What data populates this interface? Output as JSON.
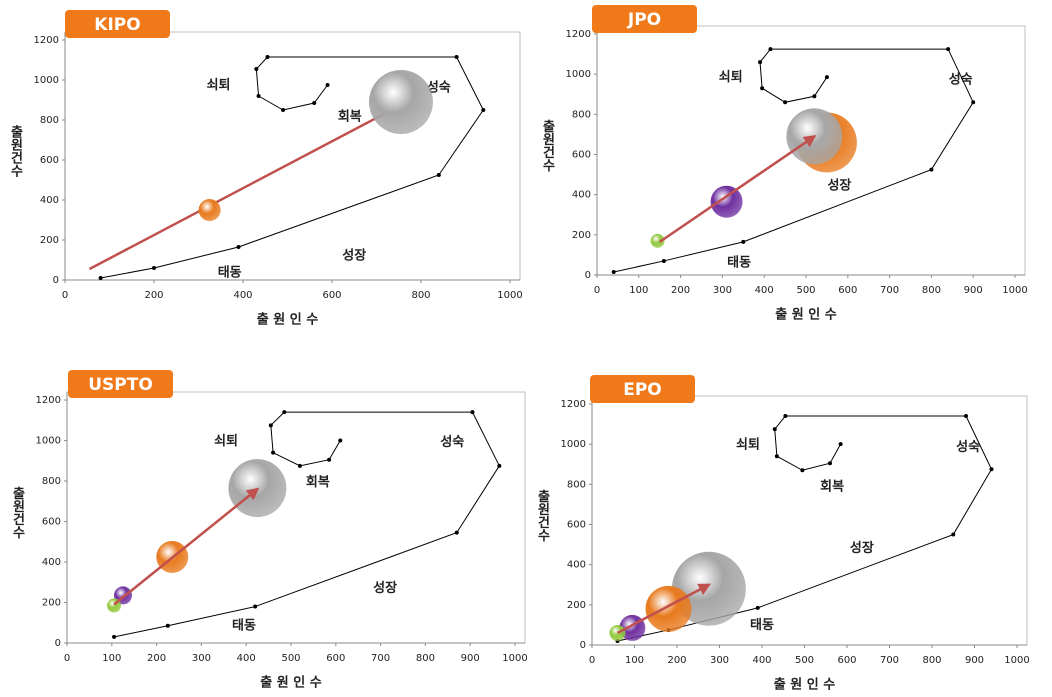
{
  "chart_data": [
    {
      "type": "bubble",
      "title": "KIPO",
      "xlabel": "출 원 인 수",
      "ylabel": "출원건수",
      "xlim": [
        0,
        1000
      ],
      "ylim": [
        0,
        1200
      ],
      "xticks": [
        0,
        200,
        400,
        600,
        800,
        1000
      ],
      "yticks": [
        0,
        200,
        400,
        600,
        800,
        1000,
        1200
      ],
      "annotations": [
        "쇠퇴",
        "성숙",
        "회복",
        "성장",
        "태동"
      ],
      "series": [
        {
          "type": "line",
          "color": "#000000",
          "x": [
            80,
            200,
            390,
            840,
            940,
            880,
            455,
            430,
            435,
            490,
            560,
            590
          ],
          "values": [
            10,
            60,
            165,
            525,
            850,
            1115,
            1115,
            1055,
            920,
            850,
            885,
            975
          ]
        },
        {
          "type": "arrow",
          "color": "#c0504d",
          "x": [
            55,
            755
          ],
          "values": [
            55,
            875
          ]
        },
        {
          "type": "bubble",
          "color": "#e87a1e",
          "x": [
            325
          ],
          "values": [
            350
          ],
          "sizes": [
            22
          ]
        },
        {
          "type": "bubble",
          "color": "#a6a6a6",
          "x": [
            755
          ],
          "values": [
            890
          ],
          "sizes": [
            64
          ]
        }
      ]
    },
    {
      "type": "bubble",
      "title": "JPO",
      "xlabel": "출 원 인 수",
      "ylabel": "출원건수",
      "xlim": [
        0,
        1000
      ],
      "ylim": [
        0,
        1200
      ],
      "xticks": [
        0,
        100,
        200,
        300,
        400,
        500,
        600,
        700,
        800,
        900,
        1000
      ],
      "yticks": [
        0,
        200,
        400,
        600,
        800,
        1000,
        1200
      ],
      "annotations": [
        "쇠퇴",
        "성숙",
        "성장",
        "태동"
      ],
      "series": [
        {
          "type": "line",
          "color": "#000000",
          "x": [
            40,
            160,
            350,
            800,
            900,
            840,
            415,
            390,
            395,
            450,
            520,
            550
          ],
          "values": [
            15,
            70,
            165,
            525,
            860,
            1125,
            1125,
            1060,
            930,
            860,
            890,
            985
          ]
        },
        {
          "type": "bubble",
          "color": "#e87a1e",
          "x": [
            550
          ],
          "values": [
            660
          ],
          "sizes": [
            60
          ]
        },
        {
          "type": "bubble",
          "color": "#a6a6a6",
          "x": [
            520
          ],
          "values": [
            690
          ],
          "sizes": [
            56
          ]
        },
        {
          "type": "bubble",
          "color": "#7030a0",
          "x": [
            310
          ],
          "values": [
            365
          ],
          "sizes": [
            32
          ]
        },
        {
          "type": "bubble",
          "color": "#92c83e",
          "x": [
            145
          ],
          "values": [
            170
          ],
          "sizes": [
            14
          ]
        },
        {
          "type": "arrow",
          "color": "#c0504d",
          "x": [
            150,
            520
          ],
          "values": [
            165,
            690
          ]
        }
      ]
    },
    {
      "type": "bubble",
      "title": "USPTO",
      "xlabel": "출 원 인 수",
      "ylabel": "출원건수",
      "xlim": [
        0,
        1000
      ],
      "ylim": [
        0,
        1200
      ],
      "xticks": [
        0,
        100,
        200,
        300,
        400,
        500,
        600,
        700,
        800,
        900,
        1000
      ],
      "yticks": [
        0,
        200,
        400,
        600,
        800,
        1000,
        1200
      ],
      "annotations": [
        "쇠퇴",
        "성숙",
        "회복",
        "성장",
        "태동"
      ],
      "series": [
        {
          "type": "line",
          "color": "#000000",
          "x": [
            105,
            225,
            420,
            870,
            965,
            905,
            485,
            455,
            460,
            520,
            585,
            610
          ],
          "values": [
            30,
            85,
            180,
            545,
            875,
            1140,
            1140,
            1075,
            940,
            875,
            905,
            1000
          ]
        },
        {
          "type": "bubble",
          "color": "#a6a6a6",
          "x": [
            425
          ],
          "values": [
            765
          ],
          "sizes": [
            58
          ]
        },
        {
          "type": "bubble",
          "color": "#e87a1e",
          "x": [
            235
          ],
          "values": [
            425
          ],
          "sizes": [
            32
          ]
        },
        {
          "type": "bubble",
          "color": "#7030a0",
          "x": [
            125
          ],
          "values": [
            235
          ],
          "sizes": [
            18
          ]
        },
        {
          "type": "bubble",
          "color": "#92c83e",
          "x": [
            105
          ],
          "values": [
            185
          ],
          "sizes": [
            14
          ]
        },
        {
          "type": "arrow",
          "color": "#c0504d",
          "x": [
            105,
            425
          ],
          "values": [
            190,
            760
          ]
        }
      ]
    },
    {
      "type": "bubble",
      "title": "EPO",
      "xlabel": "출 원 인 수",
      "ylabel": "출원건수",
      "xlim": [
        0,
        1000
      ],
      "ylim": [
        0,
        1200
      ],
      "xticks": [
        0,
        100,
        200,
        300,
        400,
        500,
        600,
        700,
        800,
        900,
        1000
      ],
      "yticks": [
        0,
        200,
        400,
        600,
        800,
        1000,
        1200
      ],
      "annotations": [
        "쇠퇴",
        "성숙",
        "회복",
        "성장",
        "태동"
      ],
      "series": [
        {
          "type": "line",
          "color": "#000000",
          "x": [
            60,
            180,
            390,
            850,
            940,
            880,
            455,
            430,
            435,
            495,
            560,
            585
          ],
          "values": [
            20,
            75,
            185,
            550,
            875,
            1140,
            1140,
            1075,
            940,
            870,
            905,
            1000
          ]
        },
        {
          "type": "bubble",
          "color": "#a6a6a6",
          "x": [
            275
          ],
          "values": [
            280
          ],
          "sizes": [
            74
          ]
        },
        {
          "type": "bubble",
          "color": "#e87a1e",
          "x": [
            180
          ],
          "values": [
            180
          ],
          "sizes": [
            46
          ]
        },
        {
          "type": "bubble",
          "color": "#7030a0",
          "x": [
            95
          ],
          "values": [
            85
          ],
          "sizes": [
            26
          ]
        },
        {
          "type": "bubble",
          "color": "#92c83e",
          "x": [
            60
          ],
          "values": [
            60
          ],
          "sizes": [
            16
          ]
        },
        {
          "type": "arrow",
          "color": "#c0504d",
          "x": [
            60,
            275
          ],
          "values": [
            60,
            300
          ]
        }
      ]
    }
  ]
}
